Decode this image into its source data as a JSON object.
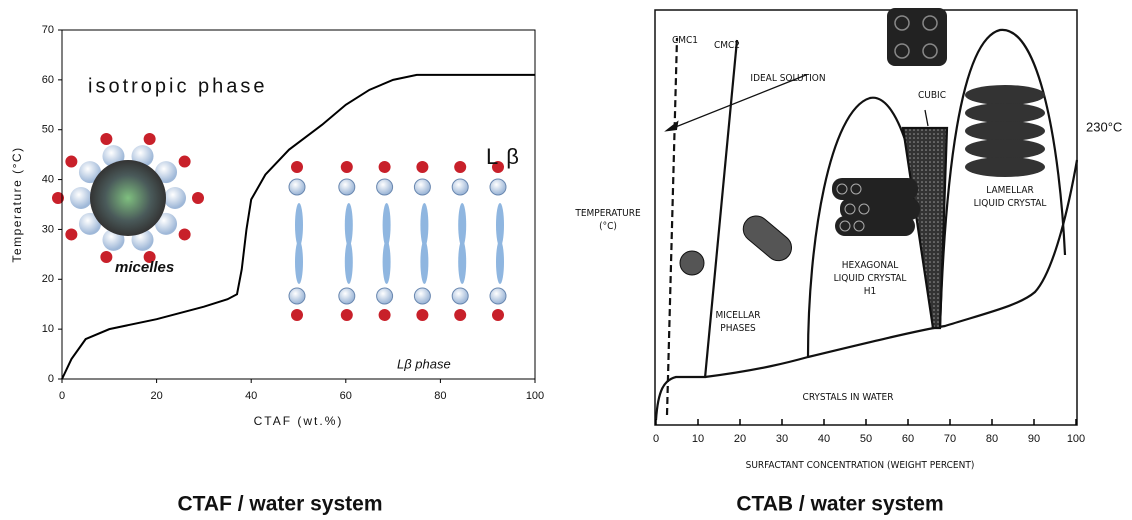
{
  "chart_data": [
    {
      "type": "line",
      "caption": "CTAF / water system",
      "xlabel": "CTAF (wt.%)",
      "ylabel": "Temperature (°C)",
      "x": [
        0,
        2,
        5,
        10,
        20,
        30,
        35,
        37,
        38,
        39,
        40,
        43,
        48,
        55,
        60,
        65,
        70,
        75,
        80,
        90,
        100
      ],
      "values": [
        0,
        4,
        8,
        10,
        12,
        14.5,
        16,
        17,
        22,
        30,
        36,
        41,
        46,
        51,
        55,
        58,
        60,
        61,
        61,
        61,
        61
      ],
      "color": "#000000",
      "xlim": [
        0,
        100
      ],
      "ylim": [
        0,
        70
      ],
      "xticks": [
        0,
        20,
        40,
        60,
        80,
        100
      ],
      "yticks": [
        0,
        10,
        20,
        30,
        40,
        50,
        60,
        70
      ],
      "annotations": [
        "isotropic phase",
        "Lβ",
        "micelles",
        "Lβ phase"
      ]
    },
    {
      "type": "phase",
      "caption": "CTAB / water system",
      "xlabel": "SURFACTANT CONCENTRATION (WEIGHT PERCENT)",
      "xlim": [
        0,
        100
      ],
      "xticks": [
        0,
        10,
        20,
        30,
        40,
        50,
        60,
        70,
        80,
        90,
        100
      ],
      "annotations": [
        "CMC1",
        "CMC2",
        "IDEAL SOLUTION",
        "CUBIC",
        "LAMELLAR",
        "LIQUID CRYSTAL",
        "TEMPERATURE",
        "(°C)",
        "HEXAGONAL",
        "LIQUID CRYSTAL",
        "H1",
        "MICELLAR",
        "PHASES",
        "CRYSTALS IN WATER",
        "230°C"
      ]
    }
  ]
}
